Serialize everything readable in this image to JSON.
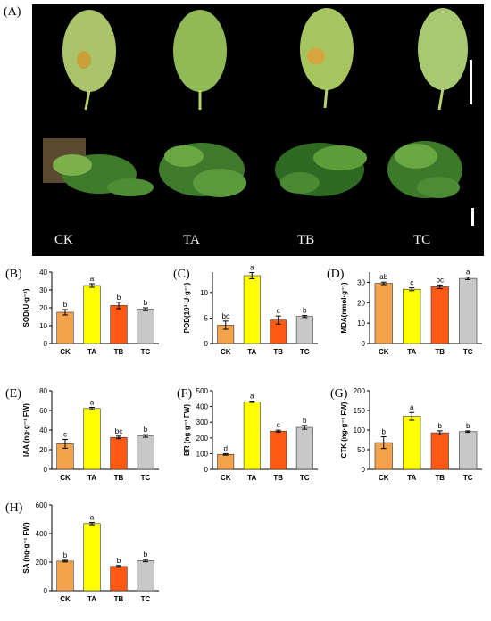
{
  "photo_panel": {
    "label": "(A)",
    "treatments": [
      "CK",
      "TA",
      "TB",
      "TC"
    ]
  },
  "colors": {
    "CK": "#F5A24C",
    "TA": "#FFFF00",
    "TB": "#FF5A14",
    "TC": "#C8C8C8"
  },
  "chart_data": [
    {
      "panel": "(B)",
      "type": "bar",
      "ylabel": "SOD(U·g⁻¹)",
      "categories": [
        "CK",
        "TA",
        "TB",
        "TC"
      ],
      "values": [
        17.5,
        32.5,
        21.3,
        19.2
      ],
      "errors": [
        1.5,
        1.0,
        1.8,
        0.8
      ],
      "letters": [
        "b",
        "a",
        "b",
        "b"
      ],
      "ylim": [
        0,
        40
      ],
      "yticks": [
        0,
        10,
        20,
        30,
        40
      ]
    },
    {
      "panel": "(C)",
      "type": "bar",
      "ylabel": "POD(10³ U·g⁻¹)",
      "categories": [
        "CK",
        "TA",
        "TB",
        "TC"
      ],
      "values": [
        3.6,
        13.3,
        4.6,
        5.3
      ],
      "errors": [
        0.8,
        0.6,
        0.8,
        0.2
      ],
      "letters": [
        "bc",
        "a",
        "c",
        "b"
      ],
      "ylim": [
        0,
        14
      ],
      "yticks": [
        0,
        5,
        10
      ]
    },
    {
      "panel": "(D)",
      "type": "bar",
      "ylabel": "MDA(nmol·g⁻¹)",
      "categories": [
        "CK",
        "TA",
        "TB",
        "TC"
      ],
      "values": [
        29.5,
        26.6,
        27.8,
        31.9
      ],
      "errors": [
        0.6,
        0.7,
        0.9,
        0.6
      ],
      "letters": [
        "ab",
        "c",
        "bc",
        "a"
      ],
      "ylim": [
        0,
        35
      ],
      "yticks": [
        0,
        10,
        20,
        30
      ]
    },
    {
      "panel": "(E)",
      "type": "bar",
      "ylabel": "IAA (ng·g⁻¹ FW)",
      "categories": [
        "CK",
        "TA",
        "TB",
        "TC"
      ],
      "values": [
        26,
        62,
        32.5,
        34
      ],
      "errors": [
        4.5,
        1.2,
        1.3,
        1.3
      ],
      "letters": [
        "c",
        "a",
        "bc",
        "b"
      ],
      "ylim": [
        0,
        80
      ],
      "yticks": [
        0,
        20,
        40,
        60,
        80
      ]
    },
    {
      "panel": "(F)",
      "type": "bar",
      "ylabel": "BR (ng·g⁻¹ FW)",
      "categories": [
        "CK",
        "TA",
        "TB",
        "TC"
      ],
      "values": [
        95,
        430,
        243,
        267
      ],
      "errors": [
        5,
        4,
        6,
        12
      ],
      "letters": [
        "d",
        "a",
        "c",
        "b"
      ],
      "ylim": [
        0,
        500
      ],
      "yticks": [
        0,
        100,
        200,
        300,
        400,
        500
      ]
    },
    {
      "panel": "(G)",
      "type": "bar",
      "ylabel": "CTK (ng·g⁻¹ FW)",
      "categories": [
        "CK",
        "TA",
        "TB",
        "TC"
      ],
      "values": [
        68,
        135,
        93,
        96
      ],
      "errors": [
        15,
        10,
        5,
        2
      ],
      "letters": [
        "b",
        "a",
        "b",
        "b"
      ],
      "ylim": [
        0,
        200
      ],
      "yticks": [
        0,
        50,
        100,
        150,
        200
      ]
    },
    {
      "panel": "(H)",
      "type": "bar",
      "ylabel": "SA (ng·g⁻¹ FW)",
      "categories": [
        "CK",
        "TA",
        "TB",
        "TC"
      ],
      "values": [
        207,
        470,
        170,
        210
      ],
      "errors": [
        6,
        8,
        6,
        8
      ],
      "letters": [
        "b",
        "a",
        "b",
        "b"
      ],
      "ylim": [
        0,
        600
      ],
      "yticks": [
        0,
        200,
        400,
        600
      ]
    }
  ]
}
